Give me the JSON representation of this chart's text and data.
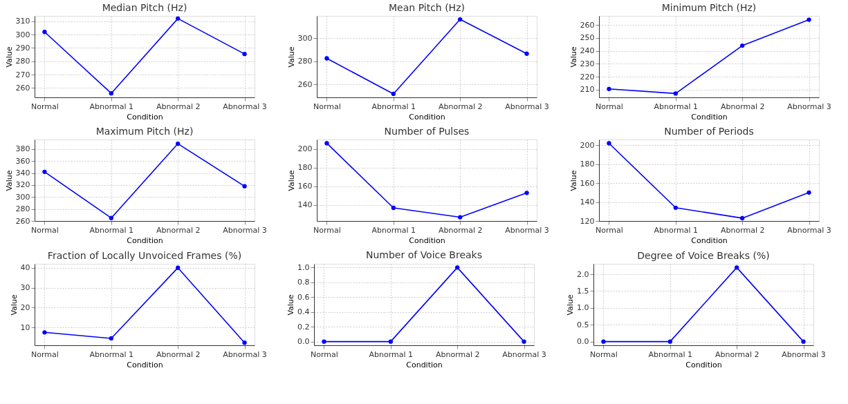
{
  "chart_data": [
    {
      "type": "line",
      "title": "Median Pitch (Hz)",
      "xlabel": "Condition",
      "ylabel": "Value",
      "categories": [
        "Normal",
        "Abnormal 1",
        "Abnormal 2",
        "Abnormal 3"
      ],
      "series": [
        {
          "color": "#0000ff",
          "values": [
            302,
            256,
            312,
            285.5
          ]
        }
      ],
      "ylim": [
        253,
        314
      ],
      "yticks": [
        260,
        270,
        280,
        290,
        300,
        310
      ],
      "grid": true,
      "marker": "circle",
      "line_style": "solid"
    },
    {
      "type": "line",
      "title": "Mean Pitch (Hz)",
      "xlabel": "Condition",
      "ylabel": "Value",
      "categories": [
        "Normal",
        "Abnormal 1",
        "Abnormal 2",
        "Abnormal 3"
      ],
      "series": [
        {
          "color": "#0000ff",
          "values": [
            282.5,
            252,
            316,
            286.5
          ]
        }
      ],
      "ylim": [
        249,
        319
      ],
      "yticks": [
        260,
        280,
        300
      ],
      "grid": true,
      "marker": "circle",
      "line_style": "solid"
    },
    {
      "type": "line",
      "title": "Minimum Pitch (Hz)",
      "xlabel": "Condition",
      "ylabel": "Value",
      "categories": [
        "Normal",
        "Abnormal 1",
        "Abnormal 2",
        "Abnormal 3"
      ],
      "series": [
        {
          "color": "#0000ff",
          "values": [
            210.5,
            207,
            244,
            264
          ]
        }
      ],
      "ylim": [
        204,
        267
      ],
      "yticks": [
        210,
        220,
        230,
        240,
        250,
        260
      ],
      "grid": true,
      "marker": "circle",
      "line_style": "solid"
    },
    {
      "type": "line",
      "title": "Maximum Pitch (Hz)",
      "xlabel": "Condition",
      "ylabel": "Value",
      "categories": [
        "Normal",
        "Abnormal 1",
        "Abnormal 2",
        "Abnormal 3"
      ],
      "series": [
        {
          "color": "#0000ff",
          "values": [
            342,
            265,
            389,
            318
          ]
        }
      ],
      "ylim": [
        260,
        396
      ],
      "yticks": [
        260,
        280,
        300,
        320,
        340,
        360,
        380
      ],
      "grid": true,
      "marker": "circle",
      "line_style": "solid"
    },
    {
      "type": "line",
      "title": "Number of Pulses",
      "xlabel": "Condition",
      "ylabel": "Value",
      "categories": [
        "Normal",
        "Abnormal 1",
        "Abnormal 2",
        "Abnormal 3"
      ],
      "series": [
        {
          "color": "#0000ff",
          "values": [
            206,
            137,
            127,
            153
          ]
        }
      ],
      "ylim": [
        123,
        210
      ],
      "yticks": [
        140,
        160,
        180,
        200
      ],
      "grid": true,
      "marker": "circle",
      "line_style": "solid"
    },
    {
      "type": "line",
      "title": "Number of Periods",
      "xlabel": "Condition",
      "ylabel": "Value",
      "categories": [
        "Normal",
        "Abnormal 1",
        "Abnormal 2",
        "Abnormal 3"
      ],
      "series": [
        {
          "color": "#0000ff",
          "values": [
            202,
            134,
            123,
            150
          ]
        }
      ],
      "ylim": [
        120,
        206
      ],
      "yticks": [
        120,
        140,
        160,
        180,
        200
      ],
      "grid": true,
      "marker": "circle",
      "line_style": "solid"
    },
    {
      "type": "line",
      "title": "Fraction of Locally Unvoiced Frames (%)",
      "xlabel": "Condition",
      "ylabel": "Value",
      "categories": [
        "Normal",
        "Abnormal 1",
        "Abnormal 2",
        "Abnormal 3"
      ],
      "series": [
        {
          "color": "#0000ff",
          "values": [
            7.5,
            4.5,
            40,
            2.3
          ]
        }
      ],
      "ylim": [
        1,
        42
      ],
      "yticks": [
        10,
        20,
        30,
        40
      ],
      "grid": true,
      "marker": "circle",
      "line_style": "solid"
    },
    {
      "type": "line",
      "title": "Number of Voice Breaks",
      "xlabel": "Condition",
      "ylabel": "Value",
      "categories": [
        "Normal",
        "Abnormal 1",
        "Abnormal 2",
        "Abnormal 3"
      ],
      "series": [
        {
          "color": "#0000ff",
          "values": [
            0,
            0,
            1,
            0
          ]
        }
      ],
      "ylim": [
        -0.05,
        1.05
      ],
      "yticks": [
        {
          "value": 0,
          "label": "0.0"
        },
        0.2,
        0.4,
        0.6,
        0.8,
        {
          "value": 1,
          "label": "1.0"
        }
      ],
      "grid": true,
      "marker": "circle",
      "line_style": "solid"
    },
    {
      "type": "line",
      "title": "Degree of Voice Breaks (%)",
      "xlabel": "Condition",
      "ylabel": "Value",
      "categories": [
        "Normal",
        "Abnormal 1",
        "Abnormal 2",
        "Abnormal 3"
      ],
      "series": [
        {
          "color": "#0000ff",
          "values": [
            0,
            0,
            2.2,
            0
          ]
        }
      ],
      "ylim": [
        -0.11,
        2.31
      ],
      "yticks": [
        {
          "value": 0,
          "label": "0.0"
        },
        0.5,
        {
          "value": 1,
          "label": "1.0"
        },
        1.5,
        {
          "value": 2,
          "label": "2.0"
        }
      ],
      "grid": true,
      "marker": "circle",
      "line_style": "solid"
    }
  ]
}
